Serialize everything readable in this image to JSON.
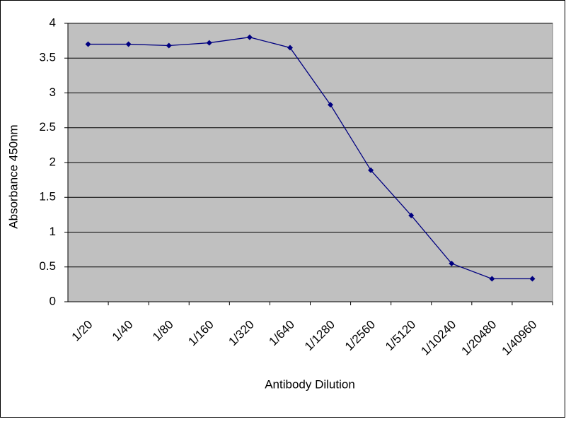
{
  "chart_data": {
    "type": "line",
    "x_label": "Antibody Dilution",
    "y_label": "Absorbance 450nm",
    "categories": [
      "1/20",
      "1/40",
      "1/80",
      "1/160",
      "1/320",
      "1/640",
      "1/1280",
      "1/2560",
      "1/5120",
      "1/10240",
      "1/20480",
      "1/40960"
    ],
    "series": [
      {
        "color": "#000080",
        "values": [
          3.7,
          3.7,
          3.68,
          3.72,
          3.8,
          3.65,
          2.83,
          1.89,
          1.24,
          0.55,
          0.33,
          0.33
        ]
      }
    ],
    "ylim": [
      0,
      4
    ],
    "yticks": [
      0,
      0.5,
      1,
      1.5,
      2,
      2.5,
      3,
      3.5,
      4
    ],
    "grid": true,
    "background": "#c0c0c0"
  }
}
